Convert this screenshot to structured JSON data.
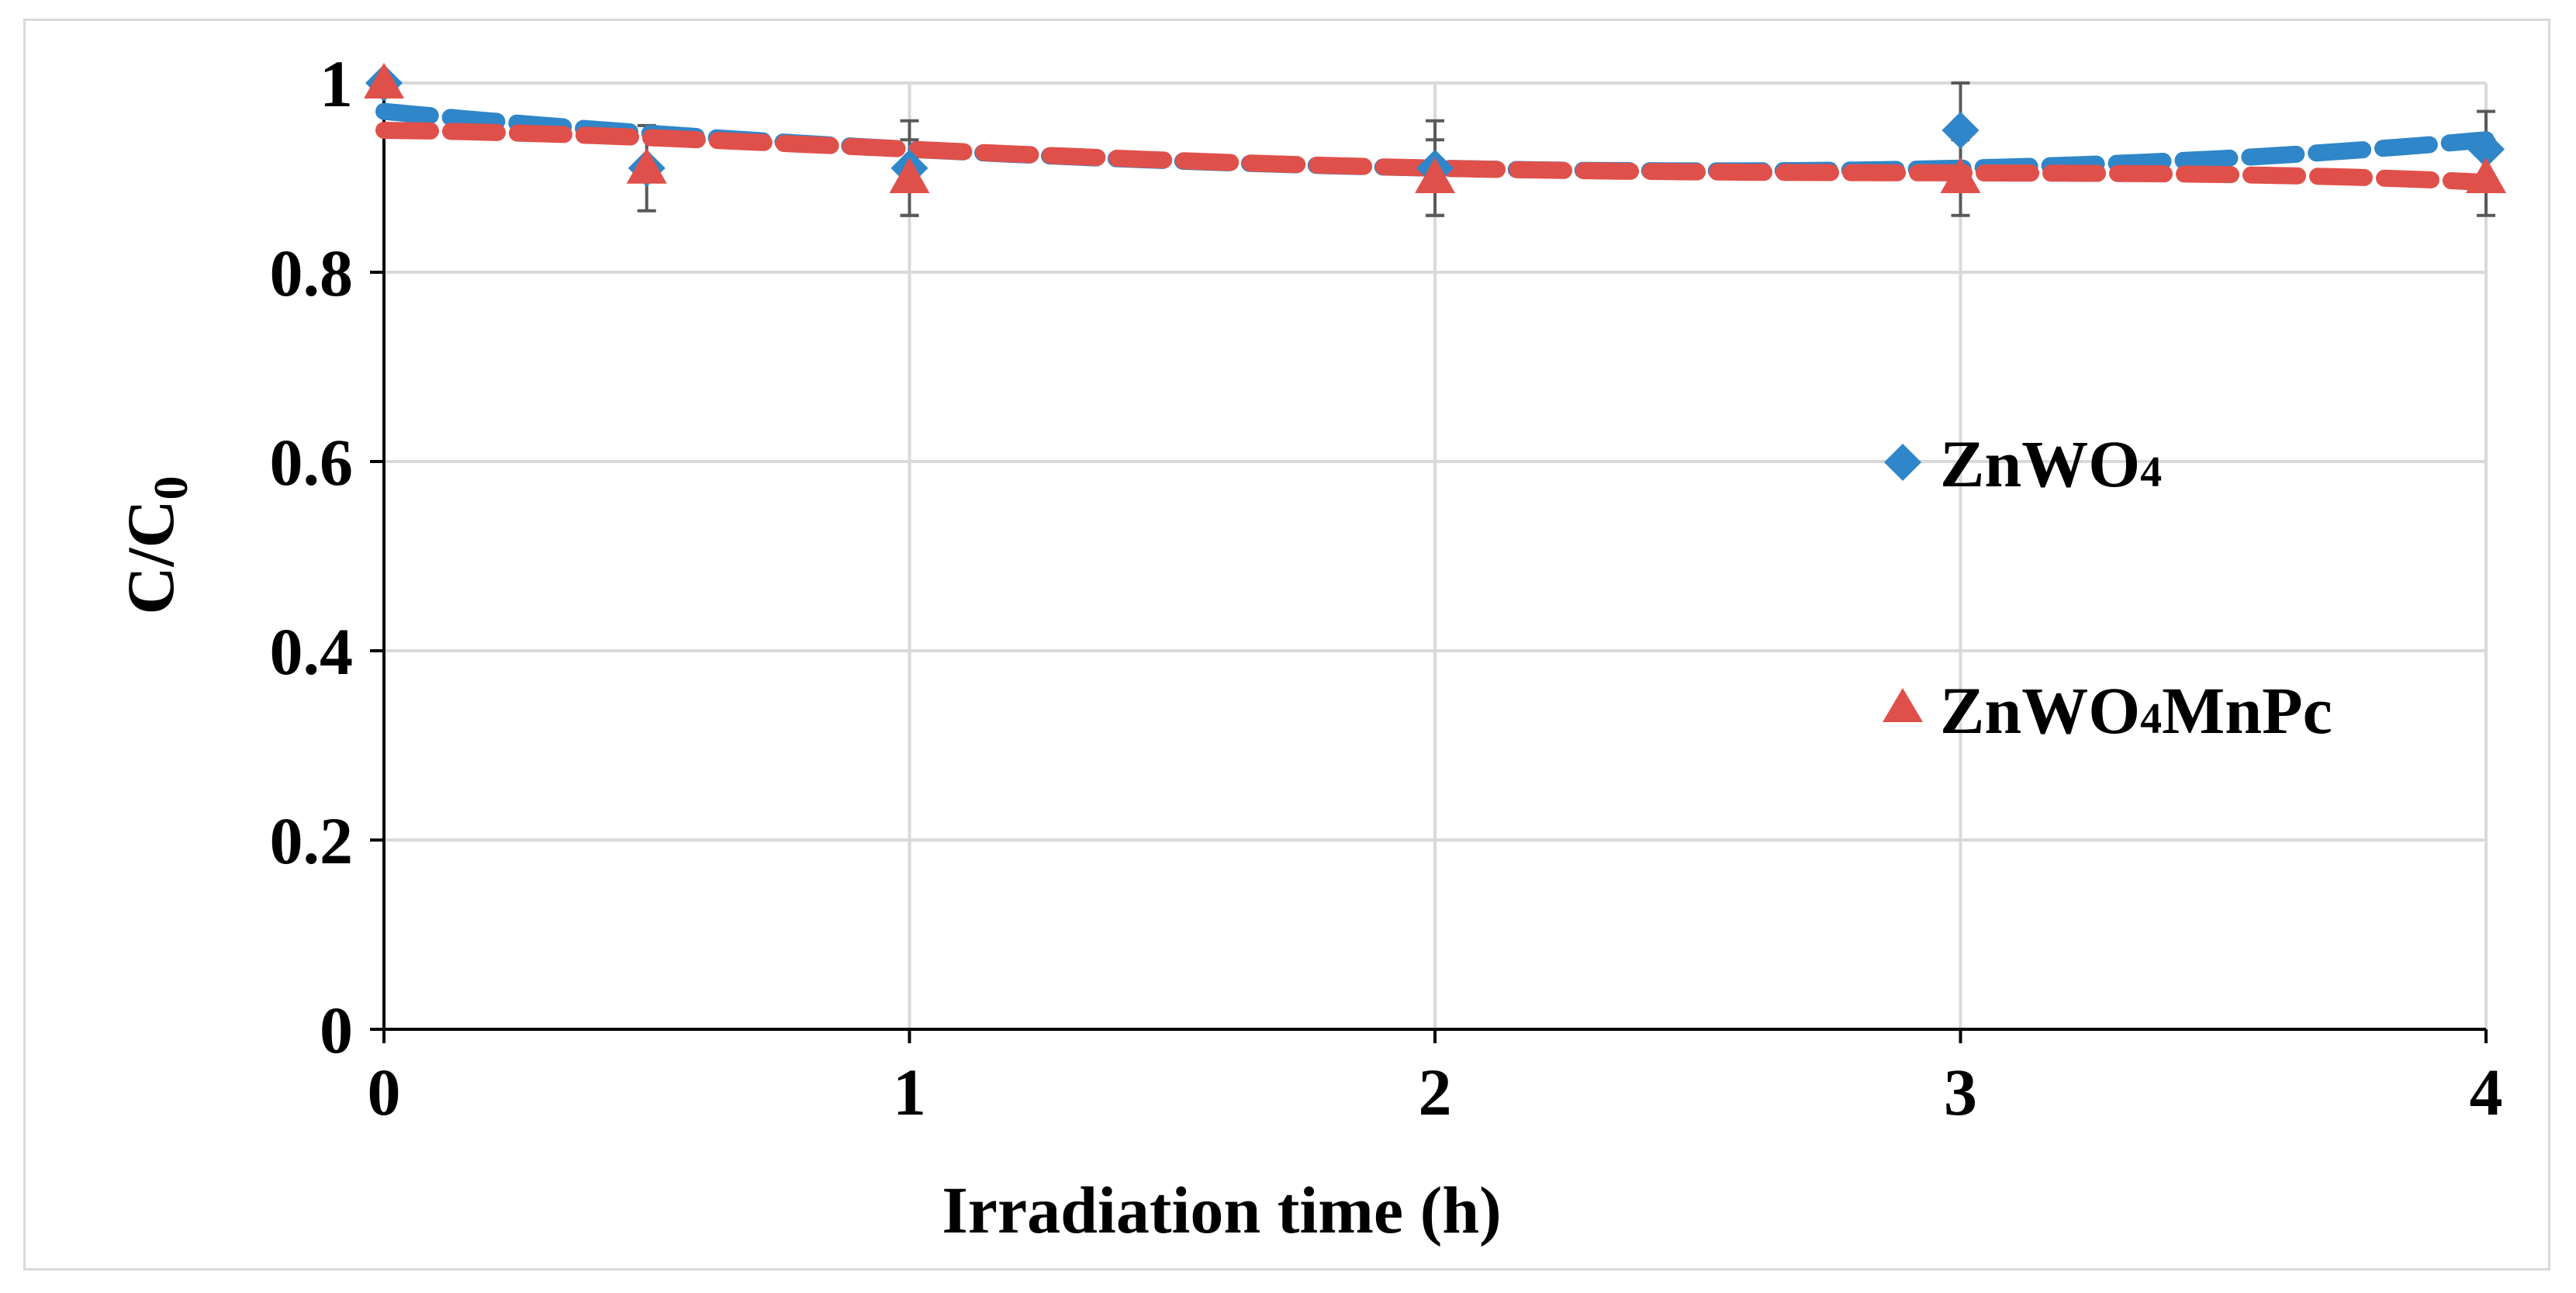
{
  "chart_data": {
    "type": "scatter",
    "title": "",
    "xlabel": "Irradiation time (h)",
    "ylabel": "C/C",
    "ylabel_subscript": "0",
    "xlim": [
      0,
      4
    ],
    "ylim": [
      0,
      1
    ],
    "x_ticks": [
      0,
      1,
      2,
      3,
      4
    ],
    "y_ticks": [
      0,
      0.2,
      0.4,
      0.6,
      0.8,
      1
    ],
    "y_tick_labels": [
      "0",
      "0.2",
      "0.4",
      "0.6",
      "0.8",
      "1"
    ],
    "grid": true,
    "legend_position": "right",
    "series": [
      {
        "name": "ZnWO",
        "name_subscript": "4",
        "marker": "diamond",
        "color": "#2f86c8",
        "x": [
          0,
          0.5,
          1,
          2,
          3,
          4
        ],
        "y": [
          1.0,
          0.91,
          0.91,
          0.91,
          0.95,
          0.93
        ],
        "error": [
          0,
          0,
          0.05,
          0.05,
          0.05,
          0.04
        ],
        "trend": [
          0.97,
          0.93,
          0.91,
          0.91,
          0.94
        ]
      },
      {
        "name": "ZnWO",
        "name_subscript": "4",
        "name_suffix": "MnPc",
        "marker": "triangle",
        "color": "#e0504a",
        "x": [
          0,
          0.5,
          1,
          2,
          3,
          4
        ],
        "y": [
          1.0,
          0.91,
          0.9,
          0.9,
          0.9,
          0.9
        ],
        "error": [
          0,
          0.045,
          0.04,
          0.04,
          0.04,
          0.04
        ],
        "trend": [
          0.95,
          0.93,
          0.91,
          0.905,
          0.895
        ]
      }
    ]
  }
}
